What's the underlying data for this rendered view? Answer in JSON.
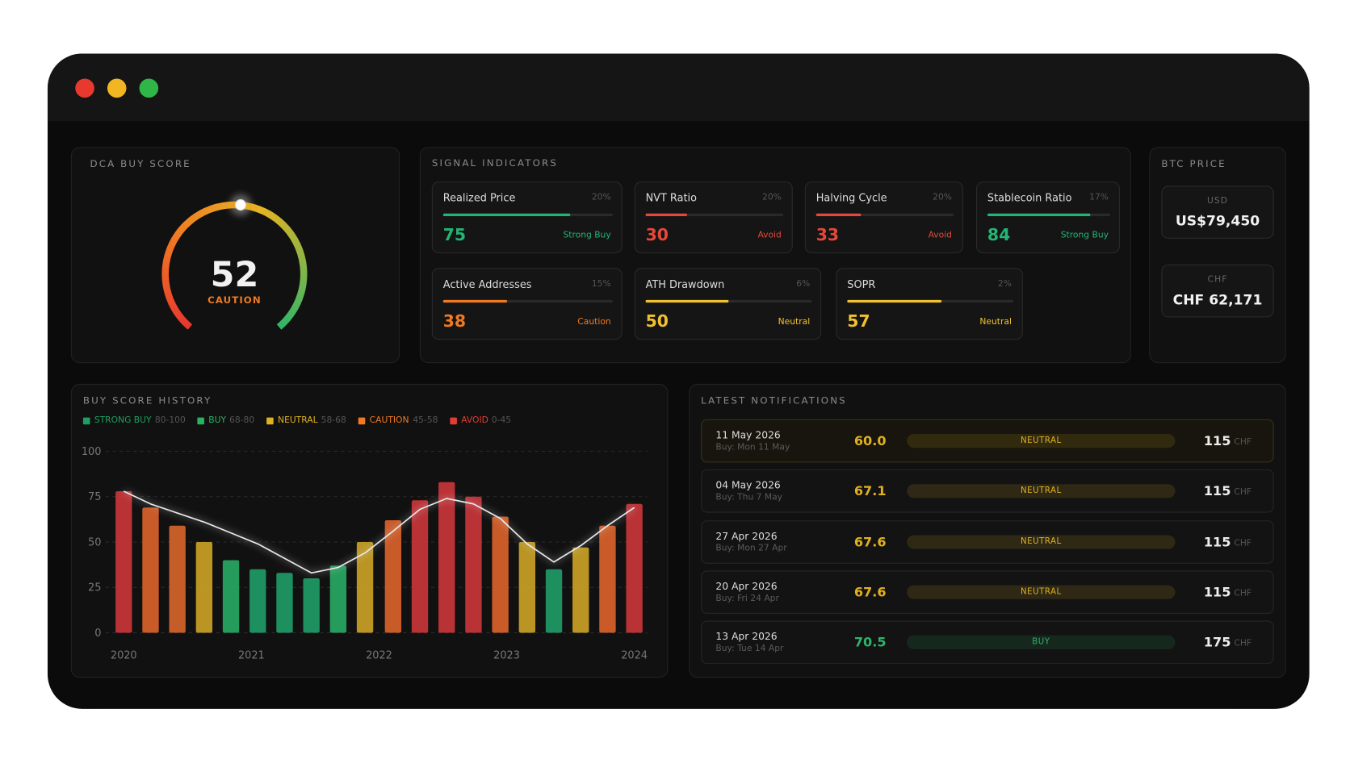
{
  "buy_score": {
    "title": "DCA BUY SCORE",
    "score": 52,
    "status": "CAUTION",
    "color": "#f07a22"
  },
  "signals": {
    "title": "SIGNAL INDICATORS",
    "cards": [
      {
        "name": "Realized Price",
        "weight": "20%",
        "score": 75,
        "label": "Strong Buy",
        "color": "#22b573"
      },
      {
        "name": "NVT Ratio",
        "weight": "20%",
        "score": 30,
        "label": "Avoid",
        "color": "#e5483b"
      },
      {
        "name": "Halving Cycle",
        "weight": "20%",
        "score": 33,
        "label": "Avoid",
        "color": "#e5483b"
      },
      {
        "name": "Stablecoin Ratio",
        "weight": "17%",
        "score": 84,
        "label": "Strong Buy",
        "color": "#22b573"
      },
      {
        "name": "Active Addresses",
        "weight": "15%",
        "score": 38,
        "label": "Caution",
        "color": "#f07a22"
      },
      {
        "name": "ATH Drawdown",
        "weight": "6%",
        "score": 50,
        "label": "Neutral",
        "color": "#f2c12e"
      },
      {
        "name": "SOPR",
        "weight": "2%",
        "score": 57,
        "label": "Neutral",
        "color": "#f2c12e"
      }
    ]
  },
  "btc_price": {
    "title": "BTC PRICE",
    "prices": [
      {
        "currency": "USD",
        "price": "US$79,450"
      },
      {
        "currency": "CHF",
        "price": "CHF 62,171"
      }
    ]
  },
  "history": {
    "title": "BUY SCORE HISTORY",
    "legend": [
      {
        "name": "STRONG BUY",
        "range": "80-100",
        "color": "#1f9e62"
      },
      {
        "name": "BUY",
        "range": "68-80",
        "color": "#27b35f"
      },
      {
        "name": "NEUTRAL",
        "range": "58-68",
        "color": "#e0b120"
      },
      {
        "name": "CAUTION",
        "range": "45-58",
        "color": "#ef7a22"
      },
      {
        "name": "AVOID",
        "range": "0-45",
        "color": "#e23c35"
      }
    ],
    "x": [
      2020,
      2020.21,
      2020.42,
      2020.63,
      2020.84,
      2021.05,
      2021.26,
      2021.47,
      2021.68,
      2021.89,
      2022.11,
      2022.32,
      2022.53,
      2022.74,
      2022.95,
      2023.16,
      2023.37,
      2023.58,
      2023.79,
      2024
    ],
    "xlim": [
      2020,
      2024
    ],
    "xticks": [
      2020,
      2021,
      2022,
      2023,
      2024
    ],
    "ylim": [
      0,
      100
    ],
    "yticks": [
      0,
      25,
      50,
      75,
      100
    ],
    "grid": true,
    "bars": {
      "values": [
        78,
        69,
        59,
        50,
        40,
        35,
        33,
        30,
        37,
        50,
        62,
        73,
        83,
        75,
        64,
        50,
        35,
        47,
        59,
        71
      ],
      "colors": [
        "#c8353a",
        "#d9622a",
        "#d4642a",
        "#c9a126",
        "#27a763",
        "#1f9a66",
        "#1f9a66",
        "#1f9a66",
        "#27a763",
        "#c9a126",
        "#d9622a",
        "#c8353a",
        "#c8353a",
        "#c8353a",
        "#d9622a",
        "#c9a126",
        "#1f9a66",
        "#c9a126",
        "#d9622a",
        "#c8353a"
      ]
    },
    "line": {
      "values": [
        78,
        71,
        66,
        61,
        55,
        49,
        41,
        33,
        36,
        44,
        56,
        68,
        74,
        71,
        63,
        49,
        39,
        48,
        59,
        69
      ],
      "color": "#e8e8e8"
    }
  },
  "notifications": {
    "title": "LATEST NOTIFICATIONS",
    "items": [
      {
        "date": "11 May 2026",
        "buy": "Buy: Mon 11 May",
        "score": {
          "value": 60,
          "label": "60.0"
        },
        "status": "NEUTRAL",
        "amount": 115,
        "currency": "CHF",
        "color": "#e0b120"
      },
      {
        "date": "04 May 2026",
        "buy": "Buy: Thu 7 May",
        "score": 67.1,
        "status": "NEUTRAL",
        "amount": 115,
        "currency": "CHF",
        "color": "#e0b120"
      },
      {
        "date": "27 Apr 2026",
        "buy": "Buy: Mon 27 Apr",
        "score": 67.6,
        "status": "NEUTRAL",
        "amount": 115,
        "currency": "CHF",
        "color": "#e0b120"
      },
      {
        "date": "20 Apr 2026",
        "buy": "Buy: Fri 24 Apr",
        "score": 67.6,
        "status": "NEUTRAL",
        "amount": 115,
        "currency": "CHF",
        "color": "#e0b120"
      },
      {
        "date": "13 Apr 2026",
        "buy": "Buy: Tue 14 Apr",
        "score": 70.5,
        "status": "BUY",
        "amount": 175,
        "currency": "CHF",
        "color": "#2fb36b"
      }
    ]
  }
}
